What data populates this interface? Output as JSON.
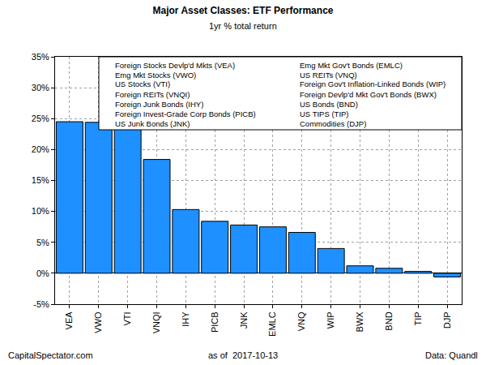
{
  "chart_data": {
    "type": "bar",
    "title": "Major Asset Classes: ETF Performance",
    "subtitle": "1yr % total return",
    "annotations": [
      "Foreign Stocks Devlp'd Mkts (VEA)",
      "Emg Mkt Stocks (VWO)",
      "US Stocks (VTI)",
      "Foreign REITs (VNQI)",
      "Foreign Junk Bonds (IHY)",
      "Foreign Invest-Grade Corp Bonds (PICB)",
      "US Junk Bonds (JNK)",
      "Emg Mkt Gov't Bonds (EMLC)",
      "US REITs (VNQ)",
      "Foreign Gov't Inflation-Linked Bonds (WIP)",
      "Foreign Devlp'd Mkt Gov't Bonds (BWX)",
      "US Bonds (BND)",
      "US TIPS (TIP)",
      "Commodities (DJP)"
    ],
    "footer": [
      "CapitalSpectator.com",
      "as of  2017-10-13",
      "Data: Quandl"
    ],
    "categories": [
      "VEA",
      "VWO",
      "VTI",
      "VNQI",
      "IHY",
      "PICB",
      "JNK",
      "EMLC",
      "VNQ",
      "WIP",
      "BWX",
      "BND",
      "TIP",
      "DJP"
    ],
    "values": [
      24.5,
      24.4,
      23.4,
      18.4,
      10.3,
      8.4,
      7.8,
      7.5,
      6.6,
      4.0,
      1.2,
      0.8,
      0.3,
      -0.6
    ],
    "color": "#1E90FF",
    "ylim": [
      -5,
      35
    ],
    "yticks": [
      {
        "value": -5,
        "label": "-5%"
      },
      {
        "value": 0,
        "label": "0%"
      },
      {
        "value": 5,
        "label": "5%"
      },
      {
        "value": 10,
        "label": "10%"
      },
      {
        "value": 15,
        "label": "15%"
      },
      {
        "value": 20,
        "label": "20%"
      },
      {
        "value": 25,
        "label": "25%"
      },
      {
        "value": 30,
        "label": "30%"
      },
      {
        "value": 35,
        "label": "35%"
      }
    ],
    "grid": true
  }
}
